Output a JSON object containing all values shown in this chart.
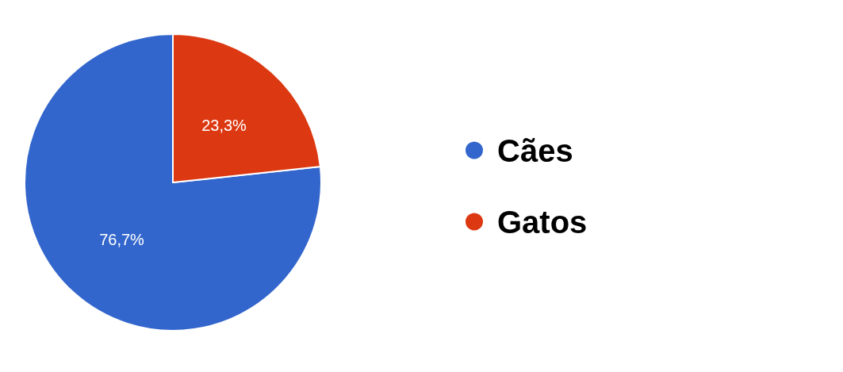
{
  "chart_data": {
    "type": "pie",
    "categories": [
      "Cães",
      "Gatos"
    ],
    "values": [
      76.7,
      23.3
    ],
    "colors": [
      "#3366cc",
      "#dc3912"
    ],
    "value_labels": [
      "76,7%",
      "23,3%"
    ],
    "legend": "right"
  }
}
